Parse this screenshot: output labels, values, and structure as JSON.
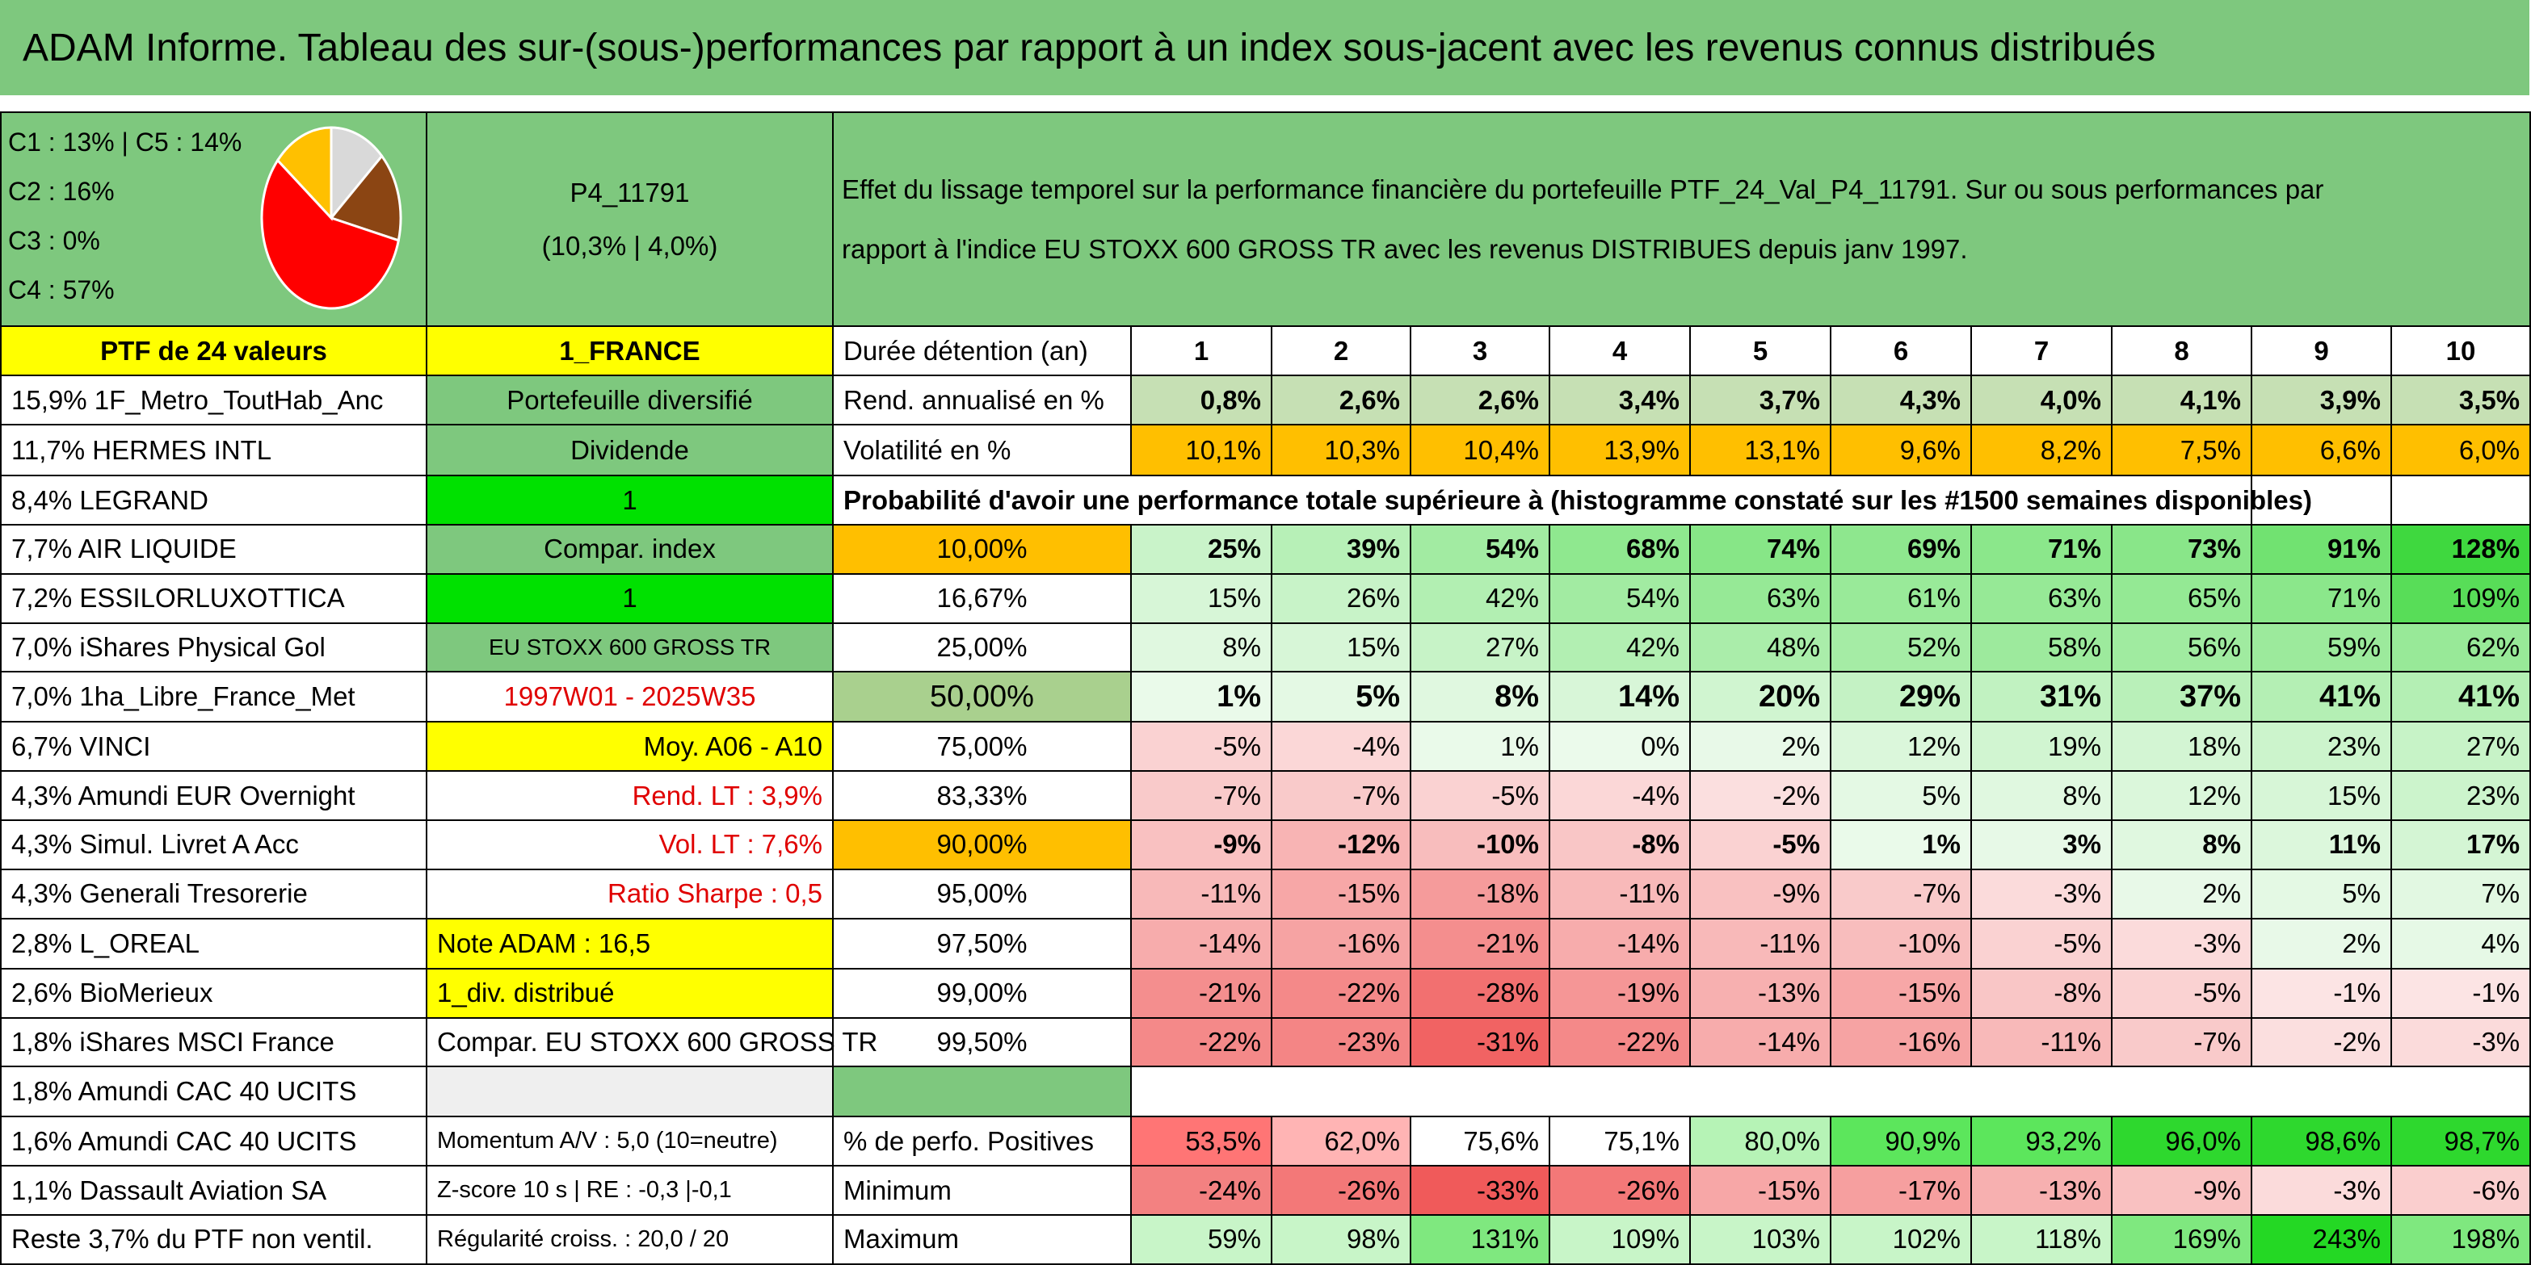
{
  "title": "ADAM Informe. Tableau des sur-(sous-)performances par rapport à un index sous-jacent avec les revenus connus distribués",
  "pie": {
    "labels": [
      "C1 : 13% | C5 : 14%",
      "C2 : 16%",
      "C3 : 0%",
      "C4 : 57%"
    ],
    "slices": [
      {
        "name": "C1",
        "value": 13,
        "color": "#d9d9d9"
      },
      {
        "name": "C2",
        "value": 16,
        "color": "#8b4513"
      },
      {
        "name": "C4",
        "value": 57,
        "color": "#ff0000"
      },
      {
        "name": "C5",
        "value": 14,
        "color": "#ffc000"
      }
    ]
  },
  "portfolio": {
    "code": "P4_11791",
    "perf": "(10,3% | 4,0%)",
    "description_line1": "Effet du lissage temporel sur la performance financière du portefeuille PTF_24_Val_P4_11791. Sur ou sous performances par",
    "description_line2": "rapport à l'indice EU STOXX 600 GROSS TR avec les revenus DISTRIBUES depuis janv 1997."
  },
  "holdings": [
    "PTF de 24 valeurs",
    "15,9% 1F_Metro_ToutHab_Anc",
    "11,7% HERMES INTL",
    "8,4% LEGRAND",
    "7,7% AIR LIQUIDE",
    "7,2% ESSILORLUXOTTICA",
    "7,0% iShares Physical Gol",
    "7,0% 1ha_Libre_France_Met",
    "6,7% VINCI",
    "4,3% Amundi EUR Overnight",
    "4,3% Simul. Livret A Acc",
    "4,3% Generali Tresorerie",
    "2,8% L_OREAL",
    "2,6% BioMerieux",
    "1,8% iShares MSCI France",
    "1,8% Amundi CAC 40 UCITS",
    "1,6% Amundi CAC 40 UCITS",
    "1,1% Dassault Aviation SA",
    "Reste 3,7% du PTF non ventil."
  ],
  "params": {
    "country": "1_FRANCE",
    "type": "Portefeuille diversifié",
    "dividende_label": "Dividende",
    "dividende_value": "1",
    "compar_label": "Compar. index",
    "compar_value": "1",
    "index_name": "EU STOXX 600 GROSS TR",
    "period": "1997W01 - 2025W35",
    "moy": "Moy. A06 - A10",
    "rend_lt": "Rend. LT : 3,9%",
    "vol_lt": "Vol. LT : 7,6%",
    "sharpe": "Ratio Sharpe : 0,5",
    "note": "Note ADAM : 16,5",
    "div": "1_div. distribué",
    "compar_full": "Compar. EU STOXX 600 GROSS TR",
    "momentum": "Momentum A/V : 5,0 (10=neutre)",
    "zscore": "Z-score 10 s | RE : -0,3 |-0,1",
    "regularite": "Régularité croiss. : 20,0 / 20"
  },
  "stats": {
    "duration_label": "Durée détention (an)",
    "years": [
      "1",
      "2",
      "3",
      "4",
      "5",
      "6",
      "7",
      "8",
      "9",
      "10"
    ],
    "rend_label": "Rend. annualisé en %",
    "rend": [
      "0,8%",
      "2,6%",
      "2,6%",
      "3,4%",
      "3,7%",
      "4,3%",
      "4,0%",
      "4,1%",
      "3,9%",
      "3,5%"
    ],
    "vol_label": "Volatilité en %",
    "vol": [
      "10,1%",
      "10,3%",
      "10,4%",
      "13,9%",
      "13,1%",
      "9,6%",
      "8,2%",
      "7,5%",
      "6,6%",
      "6,0%"
    ],
    "prob_header": "Probabilité d'avoir une performance totale supérieure à (histogramme constaté sur les #1500 semaines disponibles)",
    "percentiles": [
      {
        "p": "10,00%",
        "v": [
          "25%",
          "39%",
          "54%",
          "68%",
          "74%",
          "69%",
          "71%",
          "73%",
          "91%",
          "128%"
        ]
      },
      {
        "p": "16,67%",
        "v": [
          "15%",
          "26%",
          "42%",
          "54%",
          "63%",
          "61%",
          "63%",
          "65%",
          "71%",
          "109%"
        ]
      },
      {
        "p": "25,00%",
        "v": [
          "8%",
          "15%",
          "27%",
          "42%",
          "48%",
          "52%",
          "58%",
          "56%",
          "59%",
          "62%"
        ]
      },
      {
        "p": "50,00%",
        "v": [
          "1%",
          "5%",
          "8%",
          "14%",
          "20%",
          "29%",
          "31%",
          "37%",
          "41%",
          "41%"
        ]
      },
      {
        "p": "75,00%",
        "v": [
          "-5%",
          "-4%",
          "1%",
          "0%",
          "2%",
          "12%",
          "19%",
          "18%",
          "23%",
          "27%"
        ]
      },
      {
        "p": "83,33%",
        "v": [
          "-7%",
          "-7%",
          "-5%",
          "-4%",
          "-2%",
          "5%",
          "8%",
          "12%",
          "15%",
          "23%"
        ]
      },
      {
        "p": "90,00%",
        "v": [
          "-9%",
          "-12%",
          "-10%",
          "-8%",
          "-5%",
          "1%",
          "3%",
          "8%",
          "11%",
          "17%"
        ]
      },
      {
        "p": "95,00%",
        "v": [
          "-11%",
          "-15%",
          "-18%",
          "-11%",
          "-9%",
          "-7%",
          "-3%",
          "2%",
          "5%",
          "7%"
        ]
      },
      {
        "p": "97,50%",
        "v": [
          "-14%",
          "-16%",
          "-21%",
          "-14%",
          "-11%",
          "-10%",
          "-5%",
          "-3%",
          "2%",
          "4%"
        ]
      },
      {
        "p": "99,00%",
        "v": [
          "-21%",
          "-22%",
          "-28%",
          "-19%",
          "-13%",
          "-15%",
          "-8%",
          "-5%",
          "-1%",
          "-1%"
        ]
      },
      {
        "p": "99,50%",
        "v": [
          "-22%",
          "-23%",
          "-31%",
          "-22%",
          "-14%",
          "-16%",
          "-11%",
          "-7%",
          "-2%",
          "-3%"
        ]
      }
    ],
    "pos_label": "% de perfo. Positives",
    "pos": [
      "53,5%",
      "62,0%",
      "75,6%",
      "75,1%",
      "80,0%",
      "90,9%",
      "93,2%",
      "96,0%",
      "98,6%",
      "98,7%"
    ],
    "min_label": "Minimum",
    "min": [
      "-24%",
      "-26%",
      "-33%",
      "-26%",
      "-15%",
      "-17%",
      "-13%",
      "-9%",
      "-3%",
      "-6%"
    ],
    "max_label": "Maximum",
    "max": [
      "59%",
      "98%",
      "131%",
      "109%",
      "103%",
      "102%",
      "118%",
      "169%",
      "243%",
      "198%"
    ]
  }
}
